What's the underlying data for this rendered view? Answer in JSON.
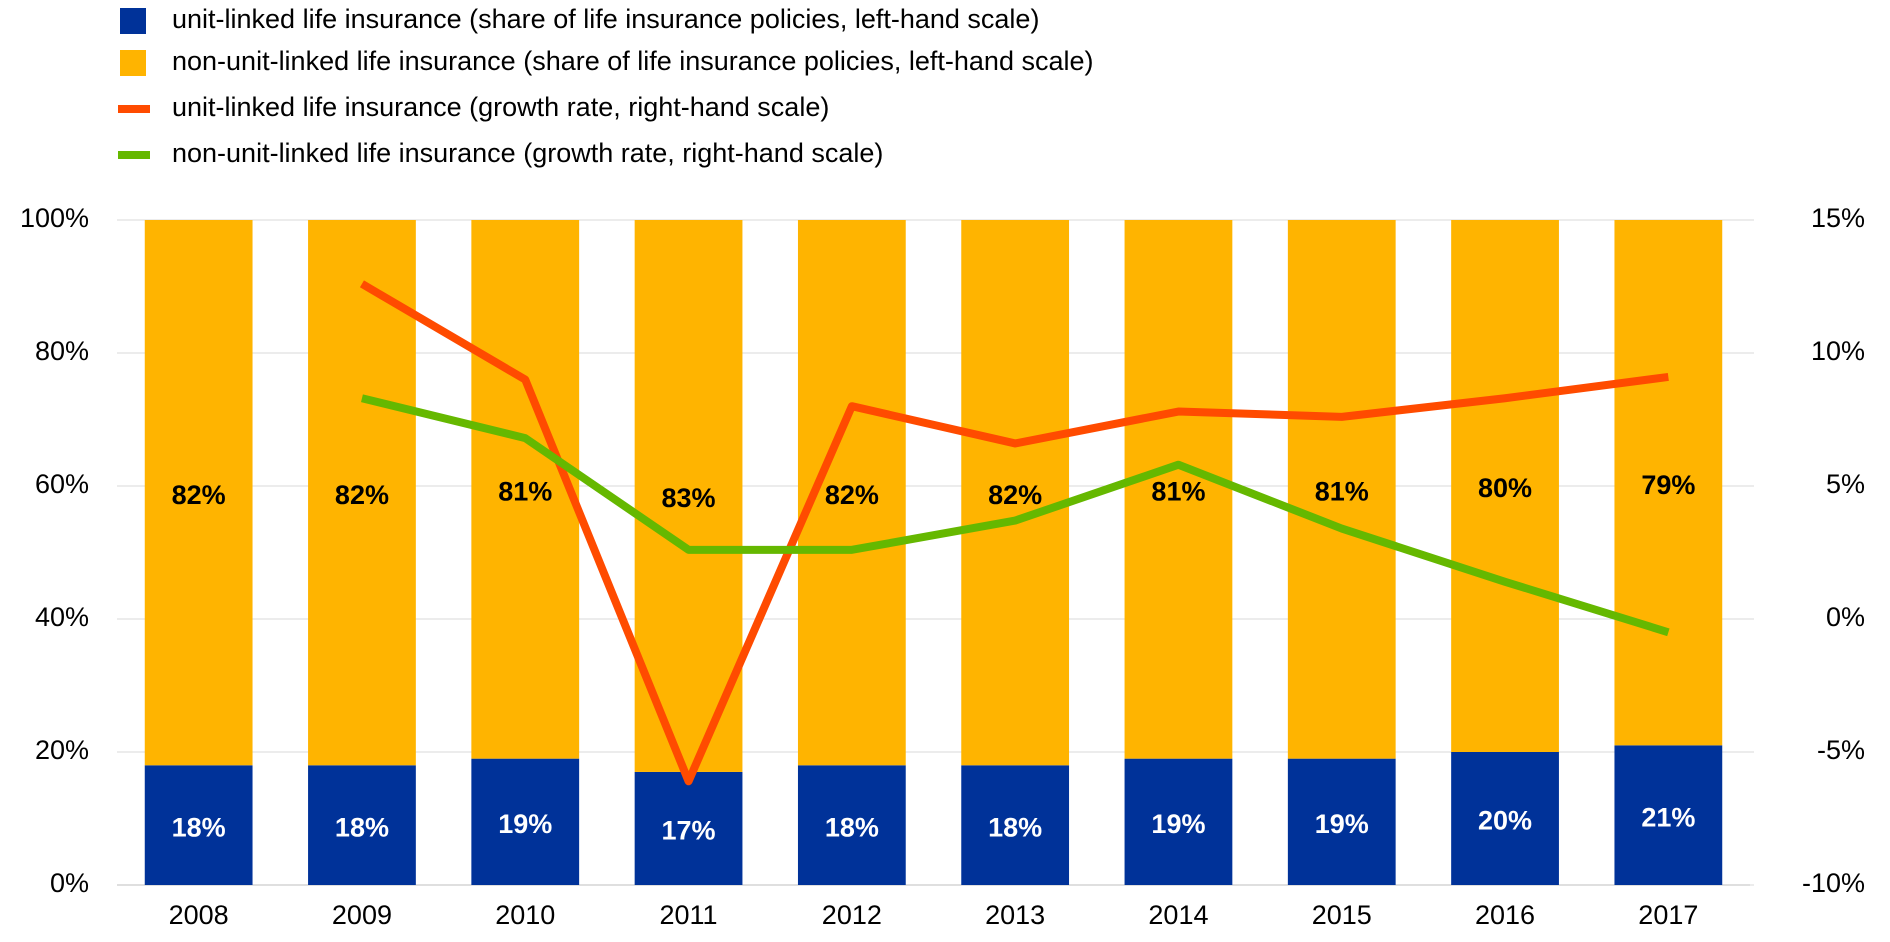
{
  "chart_data": {
    "type": "bar",
    "stacked": true,
    "categories": [
      "2008",
      "2009",
      "2010",
      "2011",
      "2012",
      "2013",
      "2014",
      "2015",
      "2016",
      "2017"
    ],
    "series": [
      {
        "name": "unit-linked life insurance (share of life insurance policies, left-hand scale)",
        "color": "#003299",
        "label_color": "#ffffff",
        "values": [
          18,
          18,
          19,
          17,
          18,
          18,
          19,
          19,
          20,
          21
        ],
        "value_labels": [
          "18%",
          "18%",
          "19%",
          "17%",
          "18%",
          "18%",
          "19%",
          "19%",
          "20%",
          "21%"
        ]
      },
      {
        "name": "non-unit-linked life insurance (share of life insurance policies, left-hand scale)",
        "color": "#ffb400",
        "label_color": "#000000",
        "values": [
          82,
          82,
          81,
          83,
          82,
          82,
          81,
          81,
          80,
          79
        ],
        "value_labels": [
          "82%",
          "82%",
          "81%",
          "83%",
          "82%",
          "82%",
          "81%",
          "81%",
          "80%",
          "79%"
        ]
      },
      {
        "name": "unit-linked life insurance (growth rate, right-hand scale)",
        "color": "#ff4b00",
        "type": "line",
        "axis": "y2",
        "values": [
          null,
          12.6,
          9.0,
          -6.1,
          8.0,
          6.6,
          7.8,
          7.6,
          8.3,
          9.1
        ]
      },
      {
        "name": "non-unit-linked life insurance (growth rate, right-hand scale)",
        "color": "#65b800",
        "type": "line",
        "axis": "y2",
        "values": [
          null,
          8.3,
          6.8,
          2.6,
          2.6,
          3.7,
          5.8,
          3.4,
          1.4,
          -0.5
        ]
      }
    ],
    "ylim": [
      0,
      100
    ],
    "yticks": [
      {
        "value": 0,
        "label": "0%"
      },
      {
        "value": 20,
        "label": "20%"
      },
      {
        "value": 40,
        "label": "40%"
      },
      {
        "value": 60,
        "label": "60%"
      },
      {
        "value": 80,
        "label": "80%"
      },
      {
        "value": 100,
        "label": "100%"
      }
    ],
    "y2lim": [
      -10,
      15
    ],
    "y2ticks": [
      {
        "value": -10,
        "label": "-10%"
      },
      {
        "value": -5,
        "label": "-5%"
      },
      {
        "value": 0,
        "label": "0%"
      },
      {
        "value": 5,
        "label": "5%"
      },
      {
        "value": 10,
        "label": "10%"
      },
      {
        "value": 15,
        "label": "15%"
      }
    ],
    "grid": true,
    "legend": "top-left"
  }
}
